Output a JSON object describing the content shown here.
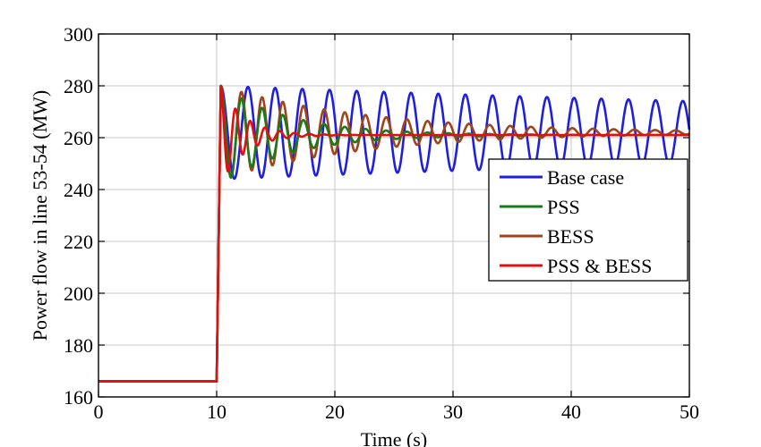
{
  "chart_data": {
    "type": "line",
    "title": "",
    "xlabel": "Time (s)",
    "ylabel": "Power flow in line 53-54 (MW)",
    "xlim": [
      0,
      50
    ],
    "ylim": [
      160,
      300
    ],
    "xticks": [
      0,
      10,
      20,
      30,
      40,
      50
    ],
    "yticks": [
      160,
      180,
      200,
      220,
      240,
      260,
      280,
      300
    ],
    "grid": true,
    "legend_position": "right",
    "series": [
      {
        "name": "Base case",
        "color": "#1f1fe0",
        "pre_step_value": 166,
        "step_time": 10,
        "settle_value": 262,
        "peak_value": 280,
        "oscillation_period_s": 2.3,
        "decay_per_s": 0.01
      },
      {
        "name": "PSS",
        "color": "#1a7a1a",
        "pre_step_value": 166,
        "step_time": 10,
        "settle_value": 261,
        "peak_value": 280,
        "oscillation_period_s": 1.75,
        "decay_per_s": 0.17
      },
      {
        "name": "BESS",
        "color": "#a0441a",
        "pre_step_value": 166,
        "step_time": 10,
        "settle_value": 262,
        "peak_value": 280,
        "oscillation_period_s": 1.75,
        "decay_per_s": 0.08
      },
      {
        "name": "PSS & BESS",
        "color": "#e01010",
        "pre_step_value": 166,
        "step_time": 10,
        "settle_value": 261,
        "peak_value": 280,
        "oscillation_period_s": 1.25,
        "decay_per_s": 0.5
      }
    ]
  }
}
